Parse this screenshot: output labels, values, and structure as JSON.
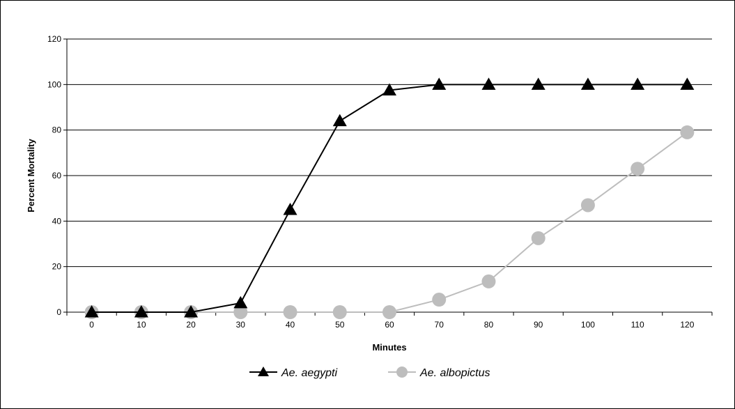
{
  "chart_data": {
    "type": "line",
    "title": "",
    "xlabel": "Minutes",
    "ylabel": "Percent Mortality",
    "categories": [
      "0",
      "10",
      "20",
      "30",
      "40",
      "50",
      "60",
      "70",
      "80",
      "90",
      "100",
      "110",
      "120"
    ],
    "ylim": [
      0,
      120
    ],
    "yticks": [
      "0",
      "20",
      "40",
      "60",
      "80",
      "100",
      "120"
    ],
    "grid": "horizontal",
    "legend_position": "bottom",
    "series": [
      {
        "name": "Ae. aegypti",
        "marker": "triangle",
        "color": "#000000",
        "values": [
          0,
          0,
          0,
          4,
          45,
          84,
          97.5,
          100,
          100,
          100,
          100,
          100,
          100
        ]
      },
      {
        "name": "Ae. albopictus",
        "marker": "circle",
        "color": "#bdbdbd",
        "values": [
          0,
          0,
          0,
          0,
          0,
          0,
          0,
          5.5,
          13.5,
          32.5,
          47,
          63,
          79
        ]
      }
    ]
  }
}
